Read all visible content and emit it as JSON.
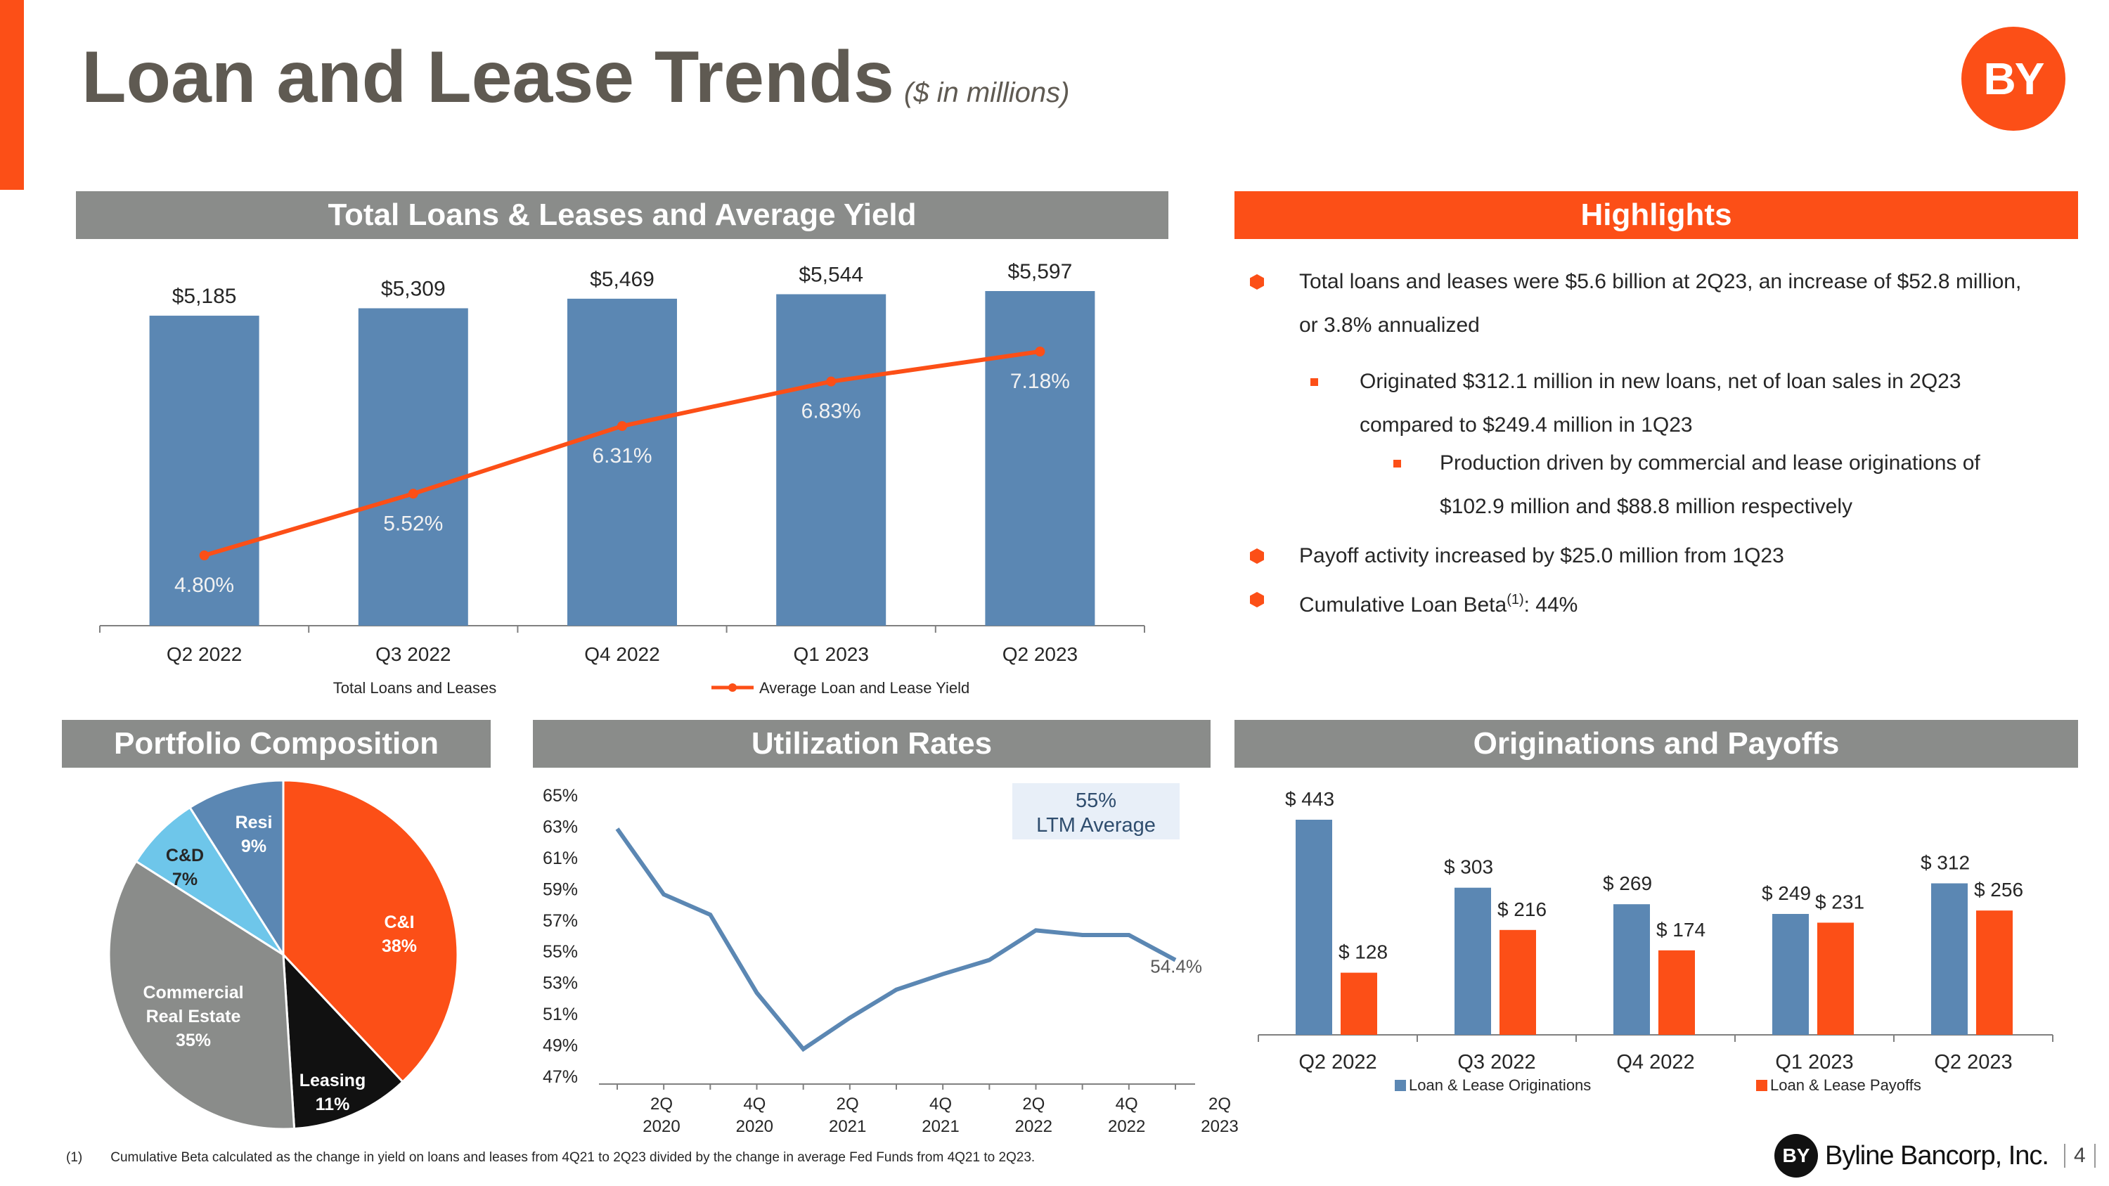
{
  "title": "Loan and Lease Trends",
  "subtitle": "($ in millions)",
  "logo_text": "BY",
  "colors": {
    "accent": "#fc4f17",
    "blue": "#5b87b3",
    "gray": "#8a8c8a",
    "light_blue": "#6ec6ea",
    "dark": "#111111"
  },
  "sections": {
    "loans": "Total Loans & Leases and Average Yield",
    "highlights": "Highlights",
    "portfolio": "Portfolio Composition",
    "utilization": "Utilization Rates",
    "originations": "Originations and Payoffs"
  },
  "highlights": [
    {
      "level": 1,
      "lines": [
        "Total loans and leases were $5.6 billion at 2Q23, an increase of $52.8 million,",
        "or 3.8% annualized"
      ]
    },
    {
      "level": 2,
      "lines": [
        "Originated $312.1 million in new loans, net of loan sales in 2Q23",
        "compared to $249.4 million in 1Q23"
      ]
    },
    {
      "level": 3,
      "lines": [
        "Production driven by commercial and lease originations of",
        "$102.9 million and $88.8 million respectively"
      ]
    },
    {
      "level": 1,
      "lines": [
        "Payoff activity increased by $25.0 million from 1Q23"
      ]
    },
    {
      "level": 1,
      "lines": [
        "Cumulative Loan Beta",
        ": 44%"
      ],
      "superscript": "(1)"
    }
  ],
  "chart_data": [
    {
      "id": "loans",
      "type": "bar",
      "title": "Total Loans & Leases and Average Yield",
      "categories": [
        "Q2 2022",
        "Q3 2022",
        "Q4 2022",
        "Q1 2023",
        "Q2 2023"
      ],
      "series": [
        {
          "name": "Total Loans and Leases",
          "type": "bar",
          "values": [
            5185,
            5309,
            5469,
            5544,
            5597
          ],
          "labels": [
            "$5,185",
            "$5,309",
            "$5,469",
            "$5,544",
            "$5,597"
          ]
        },
        {
          "name": "Average Loan and Lease Yield",
          "type": "line",
          "values": [
            4.8,
            5.52,
            6.31,
            6.83,
            7.18
          ],
          "labels": [
            "4.80%",
            "5.52%",
            "6.31%",
            "6.83%",
            "7.18%"
          ]
        }
      ],
      "legend": "bottom"
    },
    {
      "id": "portfolio",
      "type": "pie",
      "title": "Portfolio Composition",
      "slices": [
        {
          "label": "C&I",
          "value": 38,
          "color": "#fc4f17",
          "text": "38%"
        },
        {
          "label": "Leasing",
          "value": 11,
          "color": "#111111",
          "text": "11%"
        },
        {
          "label": "Commercial Real Estate",
          "value": 35,
          "color": "#8a8c8a",
          "text": "35%",
          "lines": [
            "Commercial",
            "Real Estate"
          ]
        },
        {
          "label": "C&D",
          "value": 7,
          "color": "#6ec6ea",
          "text": "7%"
        },
        {
          "label": "Resi",
          "value": 9,
          "color": "#5b87b3",
          "text": "9%"
        }
      ]
    },
    {
      "id": "utilization",
      "type": "line",
      "title": "Utilization Rates",
      "x": [
        "2Q 2020",
        "3Q 2020",
        "4Q 2020",
        "1Q 2021",
        "2Q 2021",
        "3Q 2021",
        "4Q 2021",
        "1Q 2022",
        "2Q 2022",
        "3Q 2022",
        "4Q 2022",
        "1Q 2023",
        "2Q 2023"
      ],
      "xtick_labels": [
        [
          "2Q",
          "2020"
        ],
        [
          "4Q",
          "2020"
        ],
        [
          "2Q",
          "2021"
        ],
        [
          "4Q",
          "2021"
        ],
        [
          "2Q",
          "2022"
        ],
        [
          "4Q",
          "2022"
        ],
        [
          "2Q",
          "2023"
        ]
      ],
      "values": [
        62.8,
        58.6,
        57.3,
        52.3,
        48.7,
        50.7,
        52.5,
        53.5,
        54.4,
        56.3,
        56.0,
        56.0,
        54.4
      ],
      "yticks": [
        "65%",
        "63%",
        "61%",
        "59%",
        "57%",
        "55%",
        "53%",
        "51%",
        "49%",
        "47%"
      ],
      "ylim": [
        47,
        65
      ],
      "end_label": "54.4%",
      "annotation": [
        "55%",
        "LTM Average"
      ]
    },
    {
      "id": "originations",
      "type": "bar",
      "title": "Originations and Payoffs",
      "categories": [
        "Q2 2022",
        "Q3 2022",
        "Q4 2022",
        "Q1 2023",
        "Q2 2023"
      ],
      "series": [
        {
          "name": "Loan & Lease Originations",
          "color": "#5b87b3",
          "values": [
            443,
            303,
            269,
            249,
            312
          ],
          "labels": [
            "$ 443",
            "$ 303",
            "$ 269",
            "$ 249",
            "$ 312"
          ]
        },
        {
          "name": "Loan & Lease Payoffs",
          "color": "#fc4f17",
          "values": [
            128,
            216,
            174,
            231,
            256
          ],
          "labels": [
            "$ 128",
            "$ 216",
            "$ 174",
            "$ 231",
            "$ 256"
          ]
        }
      ],
      "legend": "bottom"
    }
  ],
  "footnote": {
    "marker": "(1)",
    "text": "Cumulative Beta calculated as the change in yield on loans and leases from 4Q21 to 2Q23 divided by the change in average Fed Funds from 4Q21 to 2Q23."
  },
  "footer": {
    "logo_text": "BY",
    "company": "Byline Bancorp, Inc.",
    "page": "4"
  }
}
